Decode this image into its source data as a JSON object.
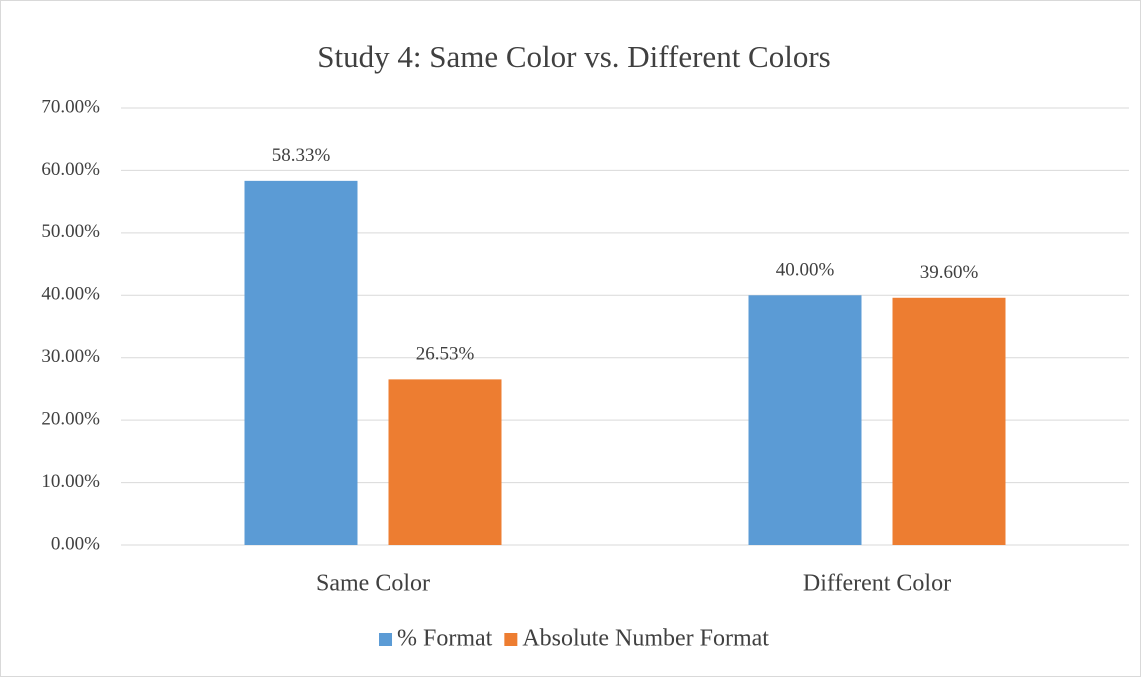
{
  "chart_data": {
    "type": "bar",
    "title": "Study 4: Same Color vs. Different Colors",
    "categories": [
      "Same Color",
      "Different Color"
    ],
    "series": [
      {
        "name": "% Format",
        "color": "#5b9bd5",
        "values": [
          58.33,
          40.0
        ],
        "value_labels": [
          "58.33%",
          "40.00%"
        ]
      },
      {
        "name": "Absolute Number Format",
        "color": "#ed7d31",
        "values": [
          26.53,
          39.6
        ],
        "value_labels": [
          "26.53%",
          "39.60%"
        ]
      }
    ],
    "ylim": [
      0,
      70
    ],
    "yticks": [
      {
        "value": 0,
        "label": "0.00%"
      },
      {
        "value": 10,
        "label": "10.00%"
      },
      {
        "value": 20,
        "label": "20.00%"
      },
      {
        "value": 30,
        "label": "30.00%"
      },
      {
        "value": 40,
        "label": "40.00%"
      },
      {
        "value": 50,
        "label": "50.00%"
      },
      {
        "value": 60,
        "label": "60.00%"
      },
      {
        "value": 70,
        "label": "70.00%"
      }
    ],
    "grid": true,
    "legend": "bottom"
  }
}
